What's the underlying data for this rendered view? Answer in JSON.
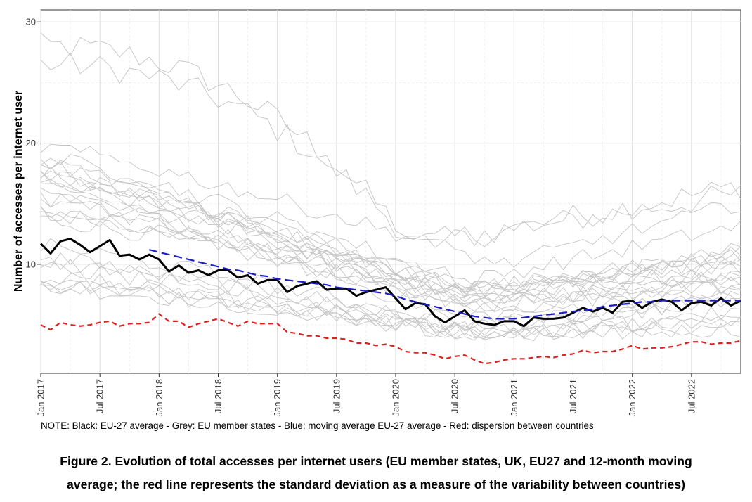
{
  "chart_data": {
    "type": "line",
    "ylabel": "Number of accesses per internet user",
    "xlabel": "",
    "ylim": [
      1,
      31
    ],
    "yticks": [
      10,
      20,
      30
    ],
    "xticks": [
      {
        "i": 0,
        "label": "Jan 2017"
      },
      {
        "i": 6,
        "label": "Jul 2017"
      },
      {
        "i": 12,
        "label": "Jan 2018"
      },
      {
        "i": 18,
        "label": "Jul 2018"
      },
      {
        "i": 24,
        "label": "Jan 2019"
      },
      {
        "i": 30,
        "label": "Jul 2019"
      },
      {
        "i": 36,
        "label": "Jan 2020"
      },
      {
        "i": 42,
        "label": "Jul 2020"
      },
      {
        "i": 48,
        "label": "Jan 2021"
      },
      {
        "i": 54,
        "label": "Jul 2021"
      },
      {
        "i": 60,
        "label": "Jan 2022"
      },
      {
        "i": 66,
        "label": "Jul 2022"
      }
    ],
    "n_months": 72,
    "series": [
      {
        "name": "EU-27 average",
        "color": "#000000",
        "values": [
          11.7,
          10.9,
          11.9,
          12.1,
          11.6,
          11.0,
          11.5,
          12.0,
          10.7,
          10.8,
          10.4,
          10.8,
          10.4,
          9.4,
          9.9,
          9.3,
          9.5,
          9.1,
          9.5,
          9.5,
          8.9,
          9.1,
          8.4,
          8.7,
          8.7,
          7.7,
          8.2,
          8.4,
          8.6,
          7.9,
          8.0,
          8.0,
          7.4,
          7.7,
          7.9,
          8.1,
          7.2,
          6.3,
          6.8,
          6.7,
          5.7,
          5.2,
          5.7,
          6.2,
          5.3,
          5.1,
          5.0,
          5.3,
          5.3,
          4.9,
          5.6,
          5.5,
          5.5,
          5.6,
          6.0,
          6.4,
          6.1,
          6.4,
          6.0,
          6.9,
          7.0,
          6.4,
          6.9,
          7.1,
          6.9,
          6.2,
          6.8,
          6.9,
          6.6,
          7.2,
          6.6,
          7.0
        ]
      },
      {
        "name": "Moving average EU-27",
        "color": "#1f1fc8",
        "dash": "12 6",
        "start": 11,
        "values": [
          11.2,
          11.0,
          10.8,
          10.6,
          10.4,
          10.2,
          10.0,
          9.8,
          9.6,
          9.5,
          9.3,
          9.1,
          9.0,
          8.8,
          8.7,
          8.6,
          8.5,
          8.4,
          8.3,
          8.1,
          8.0,
          7.9,
          7.8,
          7.7,
          7.6,
          7.4,
          7.1,
          6.9,
          6.7,
          6.5,
          6.3,
          6.1,
          5.9,
          5.7,
          5.6,
          5.5,
          5.5,
          5.5,
          5.6,
          5.7,
          5.8,
          5.9,
          6.0,
          6.1,
          6.2,
          6.3,
          6.5,
          6.6,
          6.7,
          6.8,
          6.9,
          6.9,
          7.0,
          7.0,
          7.0,
          7.0,
          7.0,
          7.0,
          7.0,
          7.0,
          7.0
        ]
      },
      {
        "name": "Dispersion between countries",
        "color": "#dd2020",
        "dash": "7 5",
        "values": [
          5.0,
          4.6,
          5.2,
          5.0,
          4.9,
          5.0,
          5.2,
          5.3,
          4.9,
          5.1,
          5.1,
          5.2,
          5.9,
          5.3,
          5.3,
          4.8,
          5.1,
          5.3,
          5.5,
          5.2,
          4.9,
          5.3,
          5.1,
          5.1,
          5.1,
          4.4,
          4.3,
          4.1,
          4.1,
          3.9,
          3.9,
          3.8,
          3.5,
          3.5,
          3.3,
          3.4,
          3.2,
          2.8,
          2.7,
          2.7,
          2.5,
          2.2,
          2.4,
          2.5,
          2.1,
          1.8,
          1.9,
          2.1,
          2.2,
          2.2,
          2.3,
          2.4,
          2.3,
          2.5,
          2.6,
          2.9,
          2.7,
          2.8,
          2.8,
          3.0,
          3.3,
          3.0,
          3.1,
          3.1,
          3.2,
          3.4,
          3.6,
          3.6,
          3.4,
          3.5,
          3.5,
          3.7
        ]
      }
    ],
    "grey_series_count": 28,
    "legend_note": "NOTE: Black: EU-27 average - Grey: EU member states - Blue: moving average EU-27 average - Red: dispersion between countries"
  },
  "caption": {
    "line1": "Figure 2. Evolution of total accesses per internet users (EU member states, UK, EU27 and 12-month moving",
    "line2": "average; the red line represents the standard deviation as a measure of the variability between countries)"
  }
}
